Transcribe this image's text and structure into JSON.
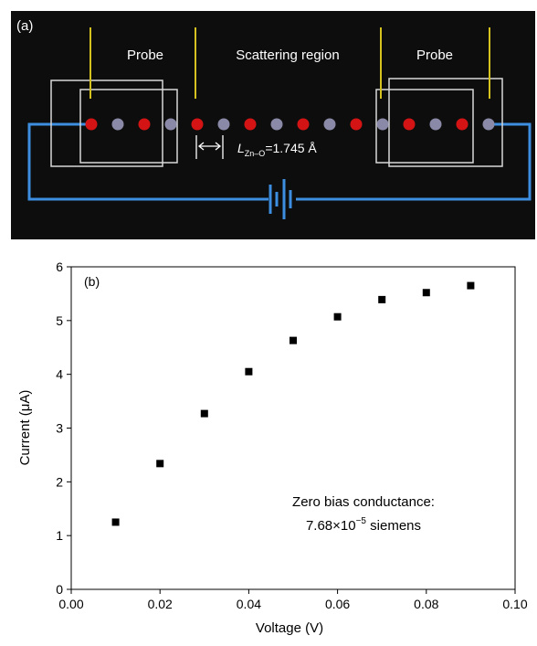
{
  "panel_a": {
    "label": "(a)",
    "probe_left_label": "Probe",
    "scattering_label": "Scattering region",
    "probe_right_label": "Probe",
    "bond_length": {
      "symbol": "L",
      "subscript": "Zn–O",
      "value_text": "=1.745 Å"
    },
    "atom_sequence": [
      "O",
      "Zn",
      "O",
      "Zn",
      "O",
      "Zn",
      "O",
      "Zn",
      "O",
      "Zn",
      "O",
      "Zn",
      "O",
      "Zn",
      "O",
      "Zn"
    ],
    "colors": {
      "background": "#0d0d0d",
      "oxygen_atom": "#d41414",
      "zinc_atom": "#8a8aa8",
      "circuit_wire": "#3d8ee0",
      "probe_marker": "#d6c21e",
      "probe_box": "#d8d8d8"
    }
  },
  "chart_data": {
    "type": "scatter",
    "panel_label": "(b)",
    "xlabel": "Voltage (V)",
    "ylabel": "Current (μA)",
    "xlim": [
      0.0,
      0.1
    ],
    "ylim": [
      0,
      6
    ],
    "x_ticks": [
      "0.00",
      "0.02",
      "0.04",
      "0.06",
      "0.08",
      "0.10"
    ],
    "y_ticks": [
      "0",
      "1",
      "2",
      "3",
      "4",
      "5",
      "6"
    ],
    "grid": false,
    "series": [
      {
        "x": [
          0.01,
          0.02,
          0.03,
          0.04,
          0.05,
          0.06,
          0.07,
          0.08,
          0.09
        ],
        "y": [
          1.25,
          2.34,
          3.27,
          4.05,
          4.63,
          5.07,
          5.39,
          5.52,
          5.65
        ]
      }
    ],
    "annotation": {
      "line1": "Zero bias conductance:",
      "line2_mantissa": "7.68×10",
      "line2_exponent": "−5",
      "line2_unit": " siemens"
    },
    "marker_color": "#000000"
  }
}
